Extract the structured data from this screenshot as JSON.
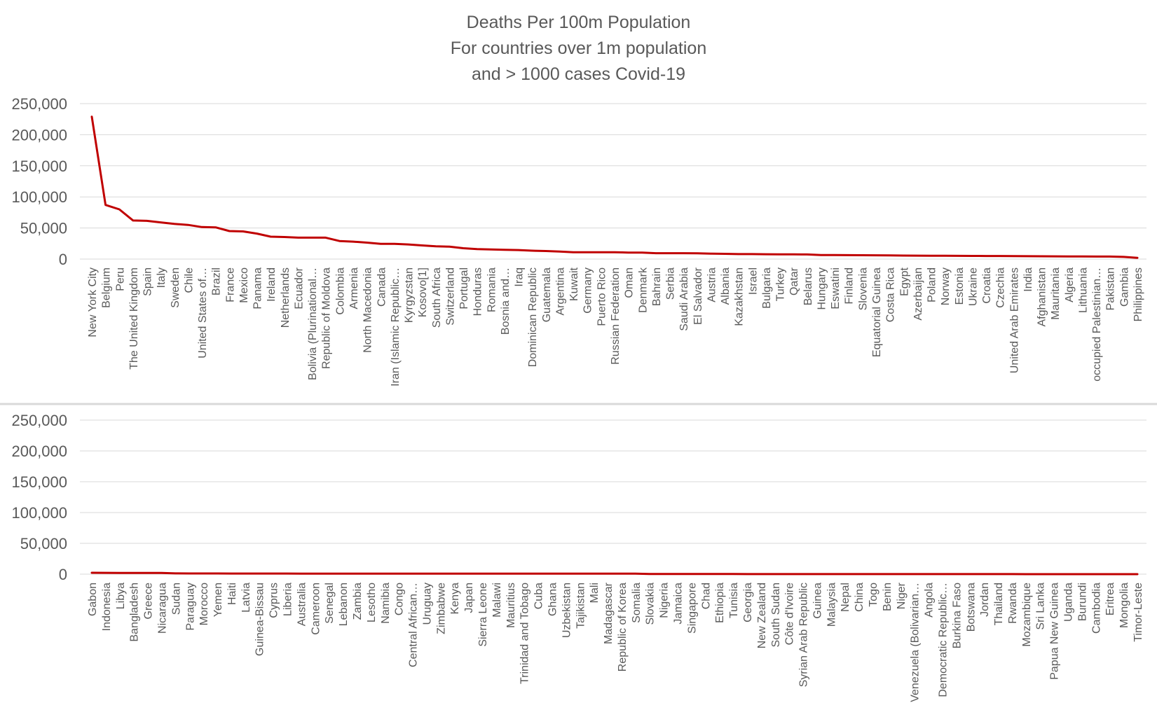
{
  "chart_data": {
    "type": "line",
    "title": [
      "Deaths Per 100m Population",
      "For countries over 1m population",
      "and > 1000 cases Covid-19"
    ],
    "series_color": "#c00000",
    "ylim": [
      0,
      250000
    ],
    "yticks": [
      0,
      50000,
      100000,
      150000,
      200000,
      250000
    ],
    "ytick_labels": [
      "0",
      "50,000",
      "100,000",
      "150,000",
      "200,000",
      "250,000"
    ],
    "grid": true,
    "panels": [
      {
        "categories": [
          "New York City",
          "Belgium",
          "Peru",
          "The United Kingdom",
          "Spain",
          "Italy",
          "Sweden",
          "Chile",
          "United States of…",
          "Brazil",
          "France",
          "Mexico",
          "Panama",
          "Ireland",
          "Netherlands",
          "Ecuador",
          "Bolivia (Plurinational…",
          "Republic of Moldova",
          "Colombia",
          "Armenia",
          "North Macedonia",
          "Canada",
          "Iran (Islamic Republic…",
          "Kyrgyzstan",
          "Kosovo[1]",
          "South Africa",
          "Switzerland",
          "Portugal",
          "Honduras",
          "Romania",
          "Bosnia and…",
          "Iraq",
          "Dominican Republic",
          "Guatemala",
          "Argentina",
          "Kuwait",
          "Germany",
          "Puerto Rico",
          "Russian Federation",
          "Oman",
          "Denmark",
          "Bahrain",
          "Serbia",
          "Saudi Arabia",
          "El Salvador",
          "Austria",
          "Albania",
          "Kazakhstan",
          "Israel",
          "Bulgaria",
          "Turkey",
          "Qatar",
          "Belarus",
          "Hungary",
          "Eswatini",
          "Finland",
          "Slovenia",
          "Equatorial Guinea",
          "Costa Rica",
          "Egypt",
          "Azerbaijan",
          "Poland",
          "Norway",
          "Estonia",
          "Ukraine",
          "Croatia",
          "Czechia",
          "United Arab Emirates",
          "India",
          "Afghanistan",
          "Mauritania",
          "Algeria",
          "Lithuania",
          "occupied Palestinian…",
          "Pakistan",
          "Gambia",
          "Philippines"
        ],
        "values": [
          229000,
          87000,
          80000,
          62000,
          61500,
          59000,
          56500,
          55000,
          51500,
          51000,
          45000,
          44500,
          41000,
          36000,
          35500,
          34500,
          34500,
          34500,
          29000,
          28000,
          26500,
          24500,
          24500,
          23500,
          22000,
          20500,
          20000,
          17500,
          16000,
          15500,
          15000,
          14500,
          13500,
          13000,
          12000,
          11000,
          11000,
          11000,
          11000,
          10500,
          10500,
          9500,
          9500,
          9500,
          9200,
          8800,
          8500,
          8000,
          8000,
          7800,
          7600,
          7500,
          7400,
          6500,
          6400,
          6300,
          6200,
          6100,
          6000,
          5600,
          5500,
          5400,
          5300,
          5200,
          5100,
          5000,
          4900,
          4700,
          4600,
          4500,
          4400,
          4300,
          4200,
          4100,
          4000,
          3500,
          2000
        ]
      },
      {
        "categories": [
          "Gabon",
          "Indonesia",
          "Libya",
          "Bangladesh",
          "Greece",
          "Nicaragua",
          "Sudan",
          "Paraguay",
          "Morocco",
          "Yemen",
          "Haiti",
          "Latvia",
          "Guinea-Bissau",
          "Cyprus",
          "Liberia",
          "Australia",
          "Cameroon",
          "Senegal",
          "Lebanon",
          "Zambia",
          "Lesotho",
          "Namibia",
          "Congo",
          "Central African…",
          "Uruguay",
          "Zimbabwe",
          "Kenya",
          "Japan",
          "Sierra Leone",
          "Malawi",
          "Mauritius",
          "Trinidad and Tobago",
          "Cuba",
          "Ghana",
          "Uzbekistan",
          "Tajikistan",
          "Mali",
          "Madagascar",
          "Republic of Korea",
          "Somalia",
          "Slovakia",
          "Nigeria",
          "Jamaica",
          "Singapore",
          "Chad",
          "Ethiopia",
          "Tunisia",
          "Georgia",
          "New Zealand",
          "South Sudan",
          "Côte d'Ivoire",
          "Syrian Arab Republic",
          "Guinea",
          "Malaysia",
          "Nepal",
          "China",
          "Togo",
          "Benin",
          "Niger",
          "Venezuela (Bolivarian…",
          "Angola",
          "Democratic Republic…",
          "Burkina Faso",
          "Botswana",
          "Jordan",
          "Thailand",
          "Rwanda",
          "Mozambique",
          "Sri Lanka",
          "Papua New Guinea",
          "Uganda",
          "Burundi",
          "Cambodia",
          "Eritrea",
          "Mongolia",
          "Timor-Leste"
        ],
        "values": [
          2300,
          2200,
          2100,
          2000,
          1950,
          1900,
          1200,
          1150,
          1100,
          1100,
          1050,
          1050,
          1000,
          1000,
          1000,
          950,
          950,
          950,
          950,
          900,
          900,
          900,
          900,
          900,
          850,
          850,
          850,
          850,
          800,
          800,
          800,
          800,
          800,
          800,
          800,
          800,
          750,
          750,
          750,
          750,
          300,
          250,
          250,
          200,
          200,
          200,
          200,
          150,
          150,
          150,
          150,
          150,
          150,
          120,
          100,
          100,
          100,
          100,
          100,
          100,
          100,
          100,
          80,
          80,
          80,
          70,
          60,
          50,
          50,
          40,
          30,
          30,
          20,
          10,
          10,
          0
        ]
      }
    ]
  }
}
